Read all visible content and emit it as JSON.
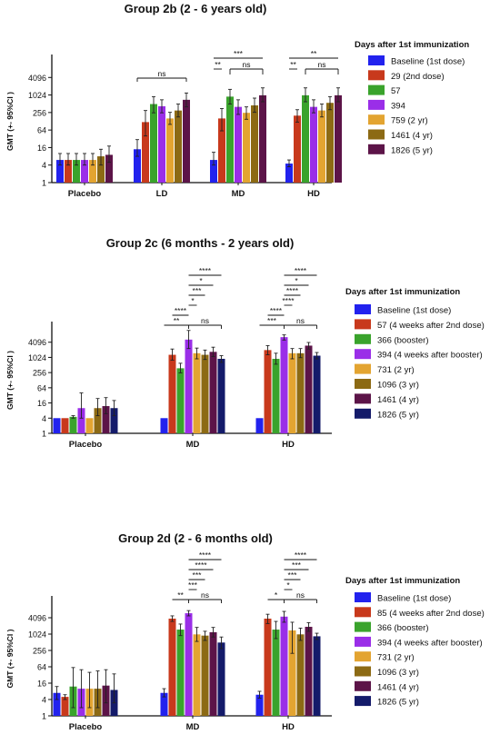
{
  "chart_data": [
    {
      "type": "bar",
      "title": "Group 2b (2 - 6 years old)",
      "ylabel": "GMT (+- 95%CI )",
      "yscale": "log4",
      "ylim": [
        1,
        16384
      ],
      "yticks": [
        "1",
        "4",
        "16",
        "64",
        "256",
        "1024",
        "4096"
      ],
      "legend_title": "Days after 1st immunization",
      "categories": [
        "Placebo",
        "LD",
        "MD",
        "HD"
      ],
      "series": [
        {
          "name": "Baseline (1st dose)",
          "color": "#2222ee",
          "values": [
            6,
            14,
            6,
            4.5
          ],
          "ci_low": [
            4,
            8,
            4,
            3.5
          ],
          "ci_high": [
            10,
            30,
            11,
            6
          ]
        },
        {
          "name": "29 (2nd dose)",
          "color": "#c8391c",
          "values": [
            6,
            120,
            160,
            200
          ],
          "ci_low": [
            4,
            40,
            60,
            120
          ],
          "ci_high": [
            10,
            300,
            350,
            320
          ]
        },
        {
          "name": "57",
          "color": "#3aa32c",
          "values": [
            6,
            500,
            900,
            1000
          ],
          "ci_low": [
            4,
            250,
            500,
            600
          ],
          "ci_high": [
            10,
            900,
            1600,
            1800
          ]
        },
        {
          "name": "394",
          "color": "#9a2ee8",
          "values": [
            6,
            420,
            400,
            400
          ],
          "ci_low": [
            4,
            250,
            220,
            250
          ],
          "ci_high": [
            10,
            700,
            700,
            700
          ]
        },
        {
          "name": "759 (2 yr)",
          "color": "#e3a431",
          "values": [
            6,
            160,
            250,
            300
          ],
          "ci_low": [
            4,
            100,
            150,
            180
          ],
          "ci_high": [
            10,
            260,
            400,
            500
          ]
        },
        {
          "name": "1461 (4 yr)",
          "color": "#8c6a14",
          "values": [
            8,
            300,
            450,
            550
          ],
          "ci_low": [
            4,
            180,
            260,
            320
          ],
          "ci_high": [
            14,
            500,
            800,
            900
          ]
        },
        {
          "name": "1826 (5 yr)",
          "color": "#5c1448",
          "values": [
            9,
            700,
            1000,
            1000
          ],
          "ci_low": [
            5,
            400,
            600,
            600
          ],
          "ci_high": [
            18,
            1200,
            1800,
            1800
          ]
        }
      ],
      "brackets": [
        {
          "cat": 1,
          "from": 0,
          "to": 6,
          "level": 0,
          "label": "ns",
          "drop": 4
        },
        {
          "cat": 2,
          "from": 0,
          "to": 6,
          "level": 0,
          "label": "***",
          "drop": 0
        },
        {
          "cat": 2,
          "from": 0,
          "to": 1,
          "level": 1,
          "label": "**",
          "drop": 0
        },
        {
          "cat": 2,
          "from": 2,
          "to": 6,
          "level": 1,
          "label": "ns",
          "drop": 6
        },
        {
          "cat": 3,
          "from": 0,
          "to": 6,
          "level": 0,
          "label": "**",
          "drop": 0
        },
        {
          "cat": 3,
          "from": 0,
          "to": 1,
          "level": 1,
          "label": "**",
          "drop": 0
        },
        {
          "cat": 3,
          "from": 2,
          "to": 6,
          "level": 1,
          "label": "ns",
          "drop": 6
        }
      ]
    },
    {
      "type": "bar",
      "title": "Group 2c (6 months - 2 years old)",
      "ylabel": "GMT (+- 95%CI )",
      "yscale": "log4",
      "ylim": [
        1,
        16384
      ],
      "yticks": [
        "1",
        "4",
        "16",
        "64",
        "256",
        "1024",
        "4096"
      ],
      "legend_title": "Days after 1st immunization",
      "categories": [
        "Placebo",
        "MD",
        "HD"
      ],
      "series": [
        {
          "name": "Baseline (1st dose)",
          "color": "#2222ee",
          "values": [
            4,
            4,
            4
          ],
          "ci_low": [
            4,
            4,
            4
          ],
          "ci_high": [
            4,
            4,
            4
          ]
        },
        {
          "name": "57 (4 weeks after 2nd dose)",
          "color": "#c8391c",
          "values": [
            4,
            1300,
            2000
          ],
          "ci_low": [
            4,
            800,
            1300
          ],
          "ci_high": [
            4,
            2200,
            3000
          ]
        },
        {
          "name": "366 (booster)",
          "color": "#3aa32c",
          "values": [
            4.5,
            380,
            900
          ],
          "ci_low": [
            4,
            250,
            550
          ],
          "ci_high": [
            5,
            600,
            1500
          ]
        },
        {
          "name": "394 (4 weeks after booster)",
          "color": "#9a2ee8",
          "values": [
            10,
            5200,
            6500
          ],
          "ci_low": [
            4,
            2300,
            5000
          ],
          "ci_high": [
            40,
            12000,
            8000
          ]
        },
        {
          "name": "731 (2 yr)",
          "color": "#e3a431",
          "values": [
            4,
            1500,
            1500
          ],
          "ci_low": [
            4,
            900,
            900
          ],
          "ci_high": [
            4,
            2400,
            2300
          ]
        },
        {
          "name": "1096 (3 yr)",
          "color": "#8c6a14",
          "values": [
            10,
            1300,
            1500
          ],
          "ci_low": [
            5,
            850,
            1000
          ],
          "ci_high": [
            24,
            2000,
            2300
          ]
        },
        {
          "name": "1461 (4 yr)",
          "color": "#5c1448",
          "values": [
            12,
            1700,
            3000
          ],
          "ci_low": [
            6,
            1100,
            2200
          ],
          "ci_high": [
            26,
            2600,
            4000
          ]
        },
        {
          "name": "1826 (5 yr)",
          "color": "#141b6a",
          "values": [
            10,
            900,
            1200
          ],
          "ci_low": [
            5,
            650,
            900
          ],
          "ci_high": [
            20,
            1200,
            1600
          ]
        }
      ],
      "brackets": [
        {
          "cat": 1,
          "from": 0,
          "to": 3,
          "level": 0,
          "label": "**",
          "drop": 0
        },
        {
          "cat": 1,
          "from": 1,
          "to": 3,
          "level": 1,
          "label": "****",
          "drop": 0
        },
        {
          "cat": 1,
          "from": 3,
          "to": 7,
          "level": 0,
          "label": "ns",
          "drop": 4
        },
        {
          "cat": 1,
          "from": 3,
          "to": 4,
          "level": 2,
          "label": "*",
          "drop": 0
        },
        {
          "cat": 1,
          "from": 3,
          "to": 5,
          "level": 3,
          "label": "***",
          "drop": 0
        },
        {
          "cat": 1,
          "from": 3,
          "to": 6,
          "level": 4,
          "label": "*",
          "drop": 0
        },
        {
          "cat": 1,
          "from": 3,
          "to": 7,
          "level": 5,
          "label": "****",
          "drop": 0
        },
        {
          "cat": 2,
          "from": 0,
          "to": 3,
          "level": 0,
          "label": "***",
          "drop": 0
        },
        {
          "cat": 2,
          "from": 1,
          "to": 3,
          "level": 1,
          "label": "****",
          "drop": 0
        },
        {
          "cat": 2,
          "from": 3,
          "to": 7,
          "level": 0,
          "label": "ns",
          "drop": 4
        },
        {
          "cat": 2,
          "from": 3,
          "to": 4,
          "level": 2,
          "label": "****",
          "drop": 0
        },
        {
          "cat": 2,
          "from": 3,
          "to": 5,
          "level": 3,
          "label": "****",
          "drop": 0
        },
        {
          "cat": 2,
          "from": 3,
          "to": 6,
          "level": 4,
          "label": "*",
          "drop": 0
        },
        {
          "cat": 2,
          "from": 3,
          "to": 7,
          "level": 5,
          "label": "****",
          "drop": 0
        }
      ]
    },
    {
      "type": "bar",
      "title": "Group 2d (2 - 6 months old)",
      "ylabel": "GMT (+- 95%CI )",
      "yscale": "log4",
      "ylim": [
        1,
        16384
      ],
      "yticks": [
        "1",
        "4",
        "16",
        "64",
        "256",
        "1024",
        "4096"
      ],
      "legend_title": "Days after 1st immunization",
      "categories": [
        "Placebo",
        "MD",
        "HD"
      ],
      "series": [
        {
          "name": "Baseline (1st dose)",
          "color": "#2222ee",
          "values": [
            7,
            7,
            6
          ],
          "ci_low": [
            4,
            5,
            4.5
          ],
          "ci_high": [
            12,
            10,
            8
          ]
        },
        {
          "name": "85 (4 weeks after 2nd dose)",
          "color": "#c8391c",
          "values": [
            5,
            3800,
            3800
          ],
          "ci_low": [
            4,
            3000,
            2500
          ],
          "ci_high": [
            6,
            4800,
            5500
          ]
        },
        {
          "name": "366 (booster)",
          "color": "#3aa32c",
          "values": [
            12,
            1500,
            1500
          ],
          "ci_low": [
            2,
            900,
            700
          ],
          "ci_high": [
            60,
            2400,
            3000
          ]
        },
        {
          "name": "394 (4 weeks after booster)",
          "color": "#9a2ee8",
          "values": [
            10,
            6000,
            4500
          ],
          "ci_low": [
            2,
            4800,
            2800
          ],
          "ci_high": [
            50,
            7500,
            7000
          ]
        },
        {
          "name": "731 (2 yr)",
          "color": "#e3a431",
          "values": [
            10,
            1000,
            1400
          ],
          "ci_low": [
            2,
            550,
            200
          ],
          "ci_high": [
            40,
            1800,
            2800
          ]
        },
        {
          "name": "1096 (3 yr)",
          "color": "#8c6a14",
          "values": [
            10,
            900,
            1000
          ],
          "ci_low": [
            2,
            600,
            600
          ],
          "ci_high": [
            45,
            1300,
            1700
          ]
        },
        {
          "name": "1461 (4 yr)",
          "color": "#5c1448",
          "values": [
            13,
            1200,
            1900
          ],
          "ci_low": [
            3,
            800,
            1300
          ],
          "ci_high": [
            50,
            1800,
            2700
          ]
        },
        {
          "name": "1826 (5 yr)",
          "color": "#141b6a",
          "values": [
            9,
            500,
            850
          ],
          "ci_low": [
            3,
            300,
            650
          ],
          "ci_high": [
            35,
            800,
            1100
          ]
        }
      ],
      "brackets": [
        {
          "cat": 1,
          "from": 1,
          "to": 3,
          "level": 0,
          "label": "**",
          "drop": 0
        },
        {
          "cat": 1,
          "from": 3,
          "to": 7,
          "level": 0,
          "label": "ns",
          "drop": 4
        },
        {
          "cat": 1,
          "from": 3,
          "to": 4,
          "level": 1,
          "label": "***",
          "drop": 0
        },
        {
          "cat": 1,
          "from": 3,
          "to": 5,
          "level": 2,
          "label": "***",
          "drop": 0
        },
        {
          "cat": 1,
          "from": 3,
          "to": 6,
          "level": 3,
          "label": "****",
          "drop": 0
        },
        {
          "cat": 1,
          "from": 3,
          "to": 7,
          "level": 4,
          "label": "****",
          "drop": 0
        },
        {
          "cat": 2,
          "from": 1,
          "to": 3,
          "level": 0,
          "label": "*",
          "drop": 0
        },
        {
          "cat": 2,
          "from": 3,
          "to": 7,
          "level": 0,
          "label": "ns",
          "drop": 4
        },
        {
          "cat": 2,
          "from": 3,
          "to": 4,
          "level": 1,
          "label": "*",
          "drop": 0
        },
        {
          "cat": 2,
          "from": 3,
          "to": 5,
          "level": 2,
          "label": "***",
          "drop": 0
        },
        {
          "cat": 2,
          "from": 3,
          "to": 6,
          "level": 3,
          "label": "***",
          "drop": 0
        },
        {
          "cat": 2,
          "from": 3,
          "to": 7,
          "level": 4,
          "label": "****",
          "drop": 0
        }
      ]
    }
  ]
}
